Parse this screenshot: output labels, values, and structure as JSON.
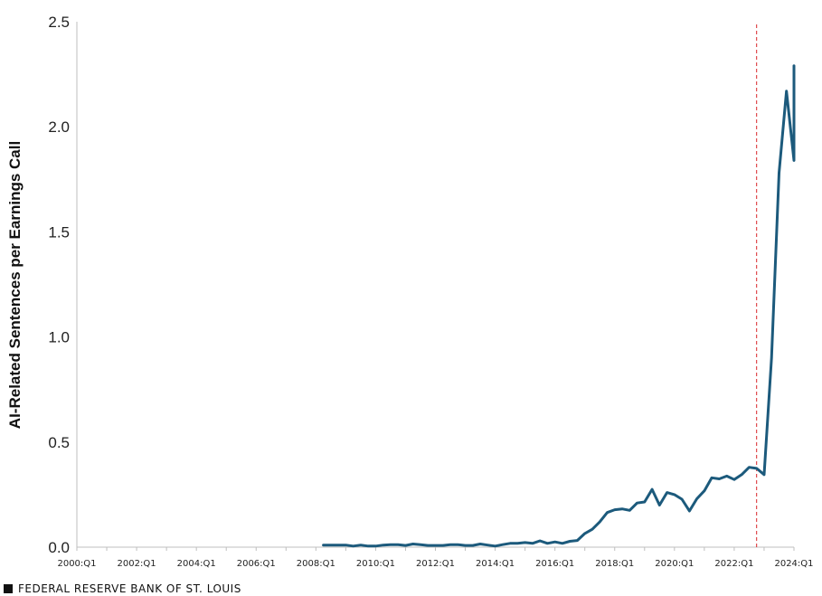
{
  "source_label": "FEDERAL RESERVE BANK OF ST. LOUIS",
  "colors": {
    "series": "#1c5a7c",
    "reference_line": "#d9262a",
    "axis": "#bfbfbf"
  },
  "chart_data": {
    "type": "line",
    "ylabel": "AI-Related Sentences per Earnings Call",
    "ylim": [
      0,
      2.5
    ],
    "yticks": [
      "0.0",
      "0.5",
      "1.0",
      "1.5",
      "2.0",
      "2.5"
    ],
    "xlim": [
      "2000:Q1",
      "2024:Q1"
    ],
    "xticks": [
      "2000:Q1",
      "2002:Q1",
      "2004:Q1",
      "2006:Q1",
      "2008:Q1",
      "2010:Q1",
      "2012:Q1",
      "2014:Q1",
      "2016:Q1",
      "2018:Q1",
      "2020:Q1",
      "2022:Q1",
      "2024:Q1"
    ],
    "grid": false,
    "reference_line": {
      "x": "2022:Q4",
      "style": "dashed"
    },
    "series": [
      {
        "points": [
          [
            "2008:Q2",
            0.01
          ],
          [
            "2008:Q3",
            0.01
          ],
          [
            "2008:Q4",
            0.01
          ],
          [
            "2009:Q1",
            0.01
          ],
          [
            "2009:Q2",
            0.005
          ],
          [
            "2009:Q3",
            0.01
          ],
          [
            "2009:Q4",
            0.005
          ],
          [
            "2010:Q1",
            0.005
          ],
          [
            "2010:Q2",
            0.01
          ],
          [
            "2010:Q3",
            0.012
          ],
          [
            "2010:Q4",
            0.012
          ],
          [
            "2011:Q1",
            0.008
          ],
          [
            "2011:Q2",
            0.015
          ],
          [
            "2011:Q3",
            0.012
          ],
          [
            "2011:Q4",
            0.008
          ],
          [
            "2012:Q1",
            0.008
          ],
          [
            "2012:Q2",
            0.008
          ],
          [
            "2012:Q3",
            0.012
          ],
          [
            "2012:Q4",
            0.012
          ],
          [
            "2013:Q1",
            0.008
          ],
          [
            "2013:Q2",
            0.008
          ],
          [
            "2013:Q3",
            0.015
          ],
          [
            "2013:Q4",
            0.01
          ],
          [
            "2014:Q1",
            0.005
          ],
          [
            "2014:Q2",
            0.012
          ],
          [
            "2014:Q3",
            0.018
          ],
          [
            "2014:Q4",
            0.018
          ],
          [
            "2015:Q1",
            0.022
          ],
          [
            "2015:Q2",
            0.018
          ],
          [
            "2015:Q3",
            0.03
          ],
          [
            "2015:Q4",
            0.018
          ],
          [
            "2016:Q1",
            0.025
          ],
          [
            "2016:Q2",
            0.018
          ],
          [
            "2016:Q3",
            0.028
          ],
          [
            "2016:Q4",
            0.032
          ],
          [
            "2017:Q1",
            0.065
          ],
          [
            "2017:Q2",
            0.085
          ],
          [
            "2017:Q3",
            0.12
          ],
          [
            "2017:Q4",
            0.165
          ],
          [
            "2018:Q1",
            0.178
          ],
          [
            "2018:Q2",
            0.182
          ],
          [
            "2018:Q3",
            0.175
          ],
          [
            "2018:Q4",
            0.21
          ],
          [
            "2019:Q1",
            0.215
          ],
          [
            "2019:Q2",
            0.275
          ],
          [
            "2019:Q3",
            0.2
          ],
          [
            "2019:Q4",
            0.26
          ],
          [
            "2020:Q1",
            0.25
          ],
          [
            "2020:Q2",
            0.228
          ],
          [
            "2020:Q3",
            0.172
          ],
          [
            "2020:Q4",
            0.23
          ],
          [
            "2021:Q1",
            0.268
          ],
          [
            "2021:Q2",
            0.33
          ],
          [
            "2021:Q3",
            0.325
          ],
          [
            "2021:Q4",
            0.338
          ],
          [
            "2022:Q1",
            0.322
          ],
          [
            "2022:Q2",
            0.345
          ],
          [
            "2022:Q3",
            0.38
          ],
          [
            "2022:Q4",
            0.375
          ],
          [
            "2023:Q1",
            0.345
          ],
          [
            "2023:Q2",
            0.9
          ],
          [
            "2023:Q3",
            1.78
          ],
          [
            "2023:Q4",
            2.17
          ],
          [
            "2024:Q1",
            1.84
          ],
          [
            "2024:Q2",
            2.29
          ]
        ]
      }
    ]
  }
}
